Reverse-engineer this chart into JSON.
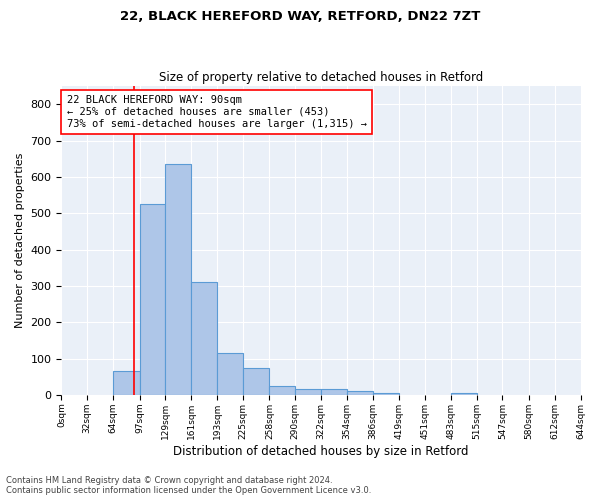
{
  "title1": "22, BLACK HEREFORD WAY, RETFORD, DN22 7ZT",
  "title2": "Size of property relative to detached houses in Retford",
  "xlabel": "Distribution of detached houses by size in Retford",
  "ylabel": "Number of detached properties",
  "bar_edges": [
    0,
    32,
    64,
    97,
    129,
    161,
    193,
    225,
    258,
    290,
    322,
    354,
    386,
    419,
    451,
    483,
    515,
    547,
    580,
    612,
    644
  ],
  "bar_heights": [
    0,
    0,
    65,
    525,
    635,
    310,
    115,
    75,
    25,
    15,
    15,
    10,
    5,
    0,
    0,
    5,
    0,
    0,
    0,
    0
  ],
  "bar_color": "#aec6e8",
  "bar_edge_color": "#5b9bd5",
  "tick_labels": [
    "0sqm",
    "32sqm",
    "64sqm",
    "97sqm",
    "129sqm",
    "161sqm",
    "193sqm",
    "225sqm",
    "258sqm",
    "290sqm",
    "322sqm",
    "354sqm",
    "386sqm",
    "419sqm",
    "451sqm",
    "483sqm",
    "515sqm",
    "547sqm",
    "580sqm",
    "612sqm",
    "644sqm"
  ],
  "red_line_x": 90,
  "annotation_text": "22 BLACK HEREFORD WAY: 90sqm\n← 25% of detached houses are smaller (453)\n73% of semi-detached houses are larger (1,315) →",
  "ylim": [
    0,
    850
  ],
  "yticks": [
    0,
    100,
    200,
    300,
    400,
    500,
    600,
    700,
    800
  ],
  "bg_color": "#eaf0f8",
  "footer1": "Contains HM Land Registry data © Crown copyright and database right 2024.",
  "footer2": "Contains public sector information licensed under the Open Government Licence v3.0."
}
